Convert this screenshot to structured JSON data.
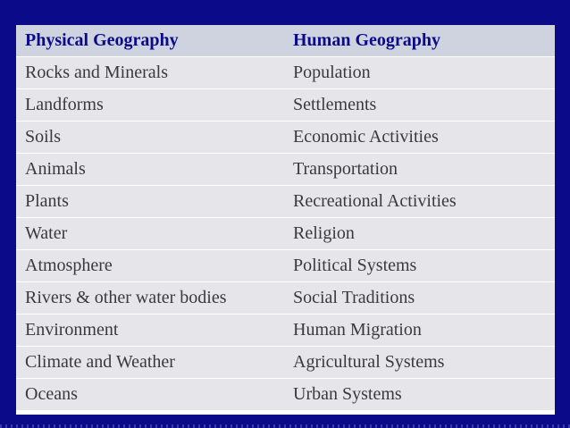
{
  "table": {
    "header": [
      "Physical Geography",
      "Human Geography"
    ],
    "rows": [
      [
        "Rocks and Minerals",
        "Population"
      ],
      [
        "Landforms",
        "Settlements"
      ],
      [
        "Soils",
        "Economic Activities"
      ],
      [
        "Animals",
        "Transportation"
      ],
      [
        "Plants",
        "Recreational Activities"
      ],
      [
        "Water",
        "Religion"
      ],
      [
        "Atmosphere",
        "Political Systems"
      ],
      [
        "Rivers & other water bodies",
        "Social Traditions"
      ],
      [
        "Environment",
        "Human Migration"
      ],
      [
        "Climate and Weather",
        "Agricultural Systems"
      ],
      [
        "Oceans",
        "Urban Systems"
      ]
    ]
  }
}
